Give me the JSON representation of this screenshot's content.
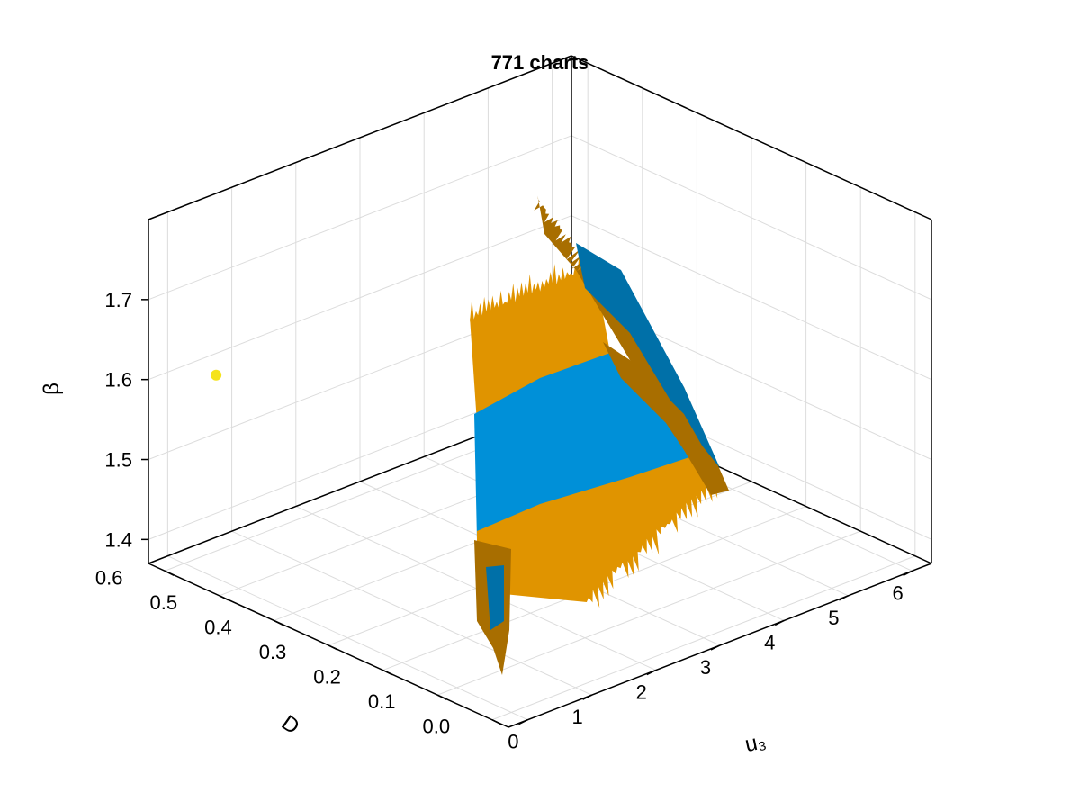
{
  "chart_data": {
    "type": "surface3d",
    "title": "771 charts",
    "xlabel": "u₃",
    "ylabel": "D",
    "zlabel": "β",
    "x_ticks": [
      "0",
      "1",
      "2",
      "3",
      "4",
      "5",
      "6"
    ],
    "y_ticks": [
      "0.0",
      "0.1",
      "0.2",
      "0.3",
      "0.4",
      "0.5",
      "0.6"
    ],
    "z_ticks": [
      "1.4",
      "1.5",
      "1.6",
      "1.7"
    ],
    "xlim": [
      -0.3,
      6.3
    ],
    "ylim": [
      -0.03,
      0.63
    ],
    "zlim": [
      1.37,
      1.8
    ],
    "grid": true,
    "surface_colors": {
      "blue": "#0090d8",
      "blue_dark": "#0070a8",
      "orange": "#e09400",
      "orange_dark": "#a86e00"
    },
    "highlight_point": {
      "u3": 0.5,
      "D": 0.6,
      "beta": 1.59,
      "color": "#f5e31a"
    }
  }
}
